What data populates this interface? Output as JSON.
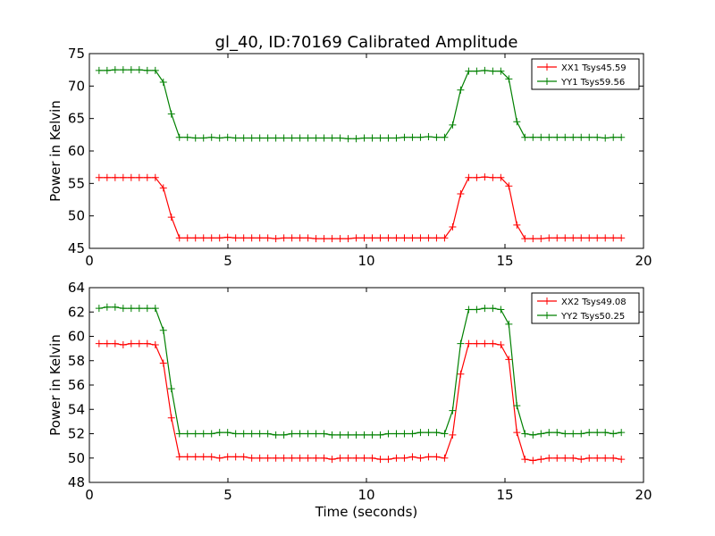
{
  "chart_data": {
    "type": "line",
    "title": "gl_40, ID:70169 Calibrated Amplitude",
    "xlabel": "Time (seconds)",
    "panels": [
      {
        "ylabel": "Power in Kelvin",
        "xlim": [
          0,
          20
        ],
        "ylim": [
          45,
          75
        ],
        "xticks": [
          0,
          5,
          10,
          15,
          20
        ],
        "yticks": [
          45,
          50,
          55,
          60,
          65,
          70,
          75
        ],
        "legend_position": "top-right",
        "series": [
          {
            "name": "XX1 Tsys45.59",
            "color": "#ff0000",
            "x": [
              0.35,
              0.64,
              0.93,
              1.22,
              1.51,
              1.8,
              2.09,
              2.38,
              2.67,
              2.96,
              3.25,
              3.54,
              3.83,
              4.12,
              4.41,
              4.7,
              4.99,
              5.28,
              5.57,
              5.86,
              6.15,
              6.44,
              6.73,
              7.02,
              7.31,
              7.6,
              7.89,
              8.18,
              8.47,
              8.76,
              9.05,
              9.34,
              9.63,
              9.92,
              10.21,
              10.5,
              10.79,
              11.08,
              11.37,
              11.66,
              11.95,
              12.24,
              12.53,
              12.82,
              13.11,
              13.4,
              13.69,
              13.98,
              14.27,
              14.56,
              14.85,
              15.14,
              15.43,
              15.72,
              16.01,
              16.3,
              16.59,
              16.88,
              17.17,
              17.46,
              17.75,
              18.04,
              18.33,
              18.62,
              18.91,
              19.2
            ],
            "y": [
              55.9,
              55.9,
              55.9,
              55.9,
              55.9,
              55.9,
              55.9,
              55.9,
              54.3,
              49.8,
              46.6,
              46.6,
              46.6,
              46.6,
              46.6,
              46.6,
              46.7,
              46.6,
              46.6,
              46.6,
              46.6,
              46.6,
              46.5,
              46.6,
              46.6,
              46.6,
              46.6,
              46.5,
              46.5,
              46.5,
              46.5,
              46.5,
              46.6,
              46.6,
              46.6,
              46.6,
              46.6,
              46.6,
              46.6,
              46.6,
              46.6,
              46.6,
              46.6,
              46.6,
              48.3,
              53.4,
              55.9,
              55.9,
              56.0,
              55.9,
              55.9,
              54.6,
              48.6,
              46.5,
              46.5,
              46.5,
              46.6,
              46.6,
              46.6,
              46.6,
              46.6,
              46.6,
              46.6,
              46.6,
              46.6,
              46.6
            ]
          },
          {
            "name": "YY1 Tsys59.56",
            "color": "#008000",
            "x": [
              0.35,
              0.64,
              0.93,
              1.22,
              1.51,
              1.8,
              2.09,
              2.38,
              2.67,
              2.96,
              3.25,
              3.54,
              3.83,
              4.12,
              4.41,
              4.7,
              4.99,
              5.28,
              5.57,
              5.86,
              6.15,
              6.44,
              6.73,
              7.02,
              7.31,
              7.6,
              7.89,
              8.18,
              8.47,
              8.76,
              9.05,
              9.34,
              9.63,
              9.92,
              10.21,
              10.5,
              10.79,
              11.08,
              11.37,
              11.66,
              11.95,
              12.24,
              12.53,
              12.82,
              13.11,
              13.4,
              13.69,
              13.98,
              14.27,
              14.56,
              14.85,
              15.14,
              15.43,
              15.72,
              16.01,
              16.3,
              16.59,
              16.88,
              17.17,
              17.46,
              17.75,
              18.04,
              18.33,
              18.62,
              18.91,
              19.2
            ],
            "y": [
              72.4,
              72.4,
              72.5,
              72.5,
              72.5,
              72.5,
              72.4,
              72.4,
              70.6,
              65.7,
              62.1,
              62.1,
              62.0,
              62.0,
              62.1,
              62.0,
              62.1,
              62.0,
              62.0,
              62.0,
              62.0,
              62.0,
              62.0,
              62.0,
              62.0,
              62.0,
              62.0,
              62.0,
              62.0,
              62.0,
              62.0,
              61.9,
              61.9,
              62.0,
              62.0,
              62.0,
              62.0,
              62.0,
              62.1,
              62.1,
              62.1,
              62.2,
              62.1,
              62.1,
              64.0,
              69.4,
              72.3,
              72.3,
              72.4,
              72.3,
              72.3,
              71.1,
              64.5,
              62.1,
              62.1,
              62.1,
              62.1,
              62.1,
              62.1,
              62.1,
              62.1,
              62.1,
              62.1,
              62.0,
              62.1,
              62.1
            ]
          }
        ]
      },
      {
        "ylabel": "Power in Kelvin",
        "xlim": [
          0,
          20
        ],
        "ylim": [
          48,
          64
        ],
        "xticks": [
          0,
          5,
          10,
          15,
          20
        ],
        "yticks": [
          48,
          50,
          52,
          54,
          56,
          58,
          60,
          62,
          64
        ],
        "legend_position": "top-right",
        "series": [
          {
            "name": "XX2 Tsys49.08",
            "color": "#ff0000",
            "x": [
              0.35,
              0.64,
              0.93,
              1.22,
              1.51,
              1.8,
              2.09,
              2.38,
              2.67,
              2.96,
              3.25,
              3.54,
              3.83,
              4.12,
              4.41,
              4.7,
              4.99,
              5.28,
              5.57,
              5.86,
              6.15,
              6.44,
              6.73,
              7.02,
              7.31,
              7.6,
              7.89,
              8.18,
              8.47,
              8.76,
              9.05,
              9.34,
              9.63,
              9.92,
              10.21,
              10.5,
              10.79,
              11.08,
              11.37,
              11.66,
              11.95,
              12.24,
              12.53,
              12.82,
              13.11,
              13.4,
              13.69,
              13.98,
              14.27,
              14.56,
              14.85,
              15.14,
              15.43,
              15.72,
              16.01,
              16.3,
              16.59,
              16.88,
              17.17,
              17.46,
              17.75,
              18.04,
              18.33,
              18.62,
              18.91,
              19.2
            ],
            "y": [
              59.4,
              59.4,
              59.4,
              59.3,
              59.4,
              59.4,
              59.4,
              59.3,
              57.8,
              53.3,
              50.1,
              50.1,
              50.1,
              50.1,
              50.1,
              50.0,
              50.1,
              50.1,
              50.1,
              50.0,
              50.0,
              50.0,
              50.0,
              50.0,
              50.0,
              50.0,
              50.0,
              50.0,
              50.0,
              49.9,
              50.0,
              50.0,
              50.0,
              50.0,
              50.0,
              49.9,
              49.9,
              50.0,
              50.0,
              50.1,
              50.0,
              50.1,
              50.1,
              50.0,
              51.9,
              56.9,
              59.4,
              59.4,
              59.4,
              59.4,
              59.3,
              58.1,
              52.1,
              49.9,
              49.8,
              49.9,
              50.0,
              50.0,
              50.0,
              50.0,
              49.9,
              50.0,
              50.0,
              50.0,
              50.0,
              49.9
            ]
          },
          {
            "name": "YY2 Tsys50.25",
            "color": "#008000",
            "x": [
              0.35,
              0.64,
              0.93,
              1.22,
              1.51,
              1.8,
              2.09,
              2.38,
              2.67,
              2.96,
              3.25,
              3.54,
              3.83,
              4.12,
              4.41,
              4.7,
              4.99,
              5.28,
              5.57,
              5.86,
              6.15,
              6.44,
              6.73,
              7.02,
              7.31,
              7.6,
              7.89,
              8.18,
              8.47,
              8.76,
              9.05,
              9.34,
              9.63,
              9.92,
              10.21,
              10.5,
              10.79,
              11.08,
              11.37,
              11.66,
              11.95,
              12.24,
              12.53,
              12.82,
              13.11,
              13.4,
              13.69,
              13.98,
              14.27,
              14.56,
              14.85,
              15.14,
              15.43,
              15.72,
              16.01,
              16.3,
              16.59,
              16.88,
              17.17,
              17.46,
              17.75,
              18.04,
              18.33,
              18.62,
              18.91,
              19.2
            ],
            "y": [
              62.3,
              62.4,
              62.4,
              62.3,
              62.3,
              62.3,
              62.3,
              62.3,
              60.5,
              55.7,
              52.0,
              52.0,
              52.0,
              52.0,
              52.0,
              52.1,
              52.1,
              52.0,
              52.0,
              52.0,
              52.0,
              52.0,
              51.9,
              51.9,
              52.0,
              52.0,
              52.0,
              52.0,
              52.0,
              51.9,
              51.9,
              51.9,
              51.9,
              51.9,
              51.9,
              51.9,
              52.0,
              52.0,
              52.0,
              52.0,
              52.1,
              52.1,
              52.1,
              52.0,
              53.9,
              59.4,
              62.2,
              62.2,
              62.3,
              62.3,
              62.2,
              61.0,
              54.3,
              52.0,
              51.9,
              52.0,
              52.1,
              52.1,
              52.0,
              52.0,
              52.0,
              52.1,
              52.1,
              52.1,
              52.0,
              52.1
            ]
          }
        ]
      }
    ]
  }
}
